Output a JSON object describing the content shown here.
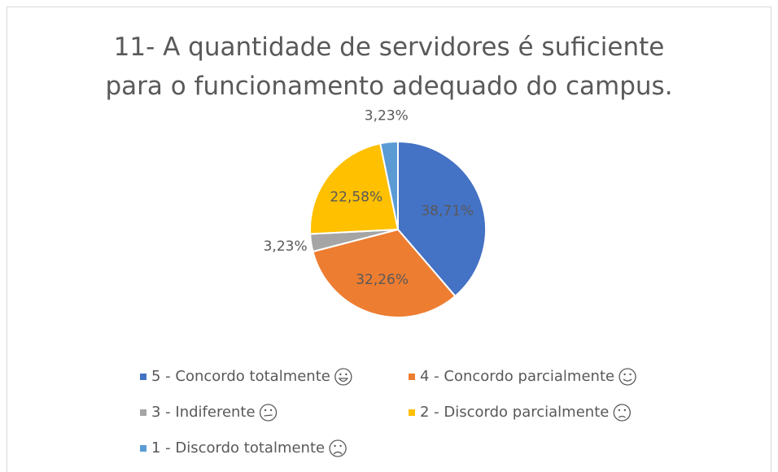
{
  "chart_data": {
    "type": "pie",
    "title": "11- A quantidade de servidores é suficiente para o funcionamento adequado do campus.",
    "categories": [
      "5 - Concordo totalmente",
      "4 - Concordo parcialmente",
      "3 - Indiferente",
      "2 - Discordo parcialmente",
      "1 - Discordo totalmente"
    ],
    "values": [
      38.71,
      32.26,
      3.23,
      22.58,
      3.23
    ],
    "value_labels": [
      "38,71%",
      "32,26%",
      "3,23%",
      "22,58%",
      "3,23%"
    ],
    "colors": [
      "#4472c4",
      "#ed7d31",
      "#a5a5a5",
      "#ffc000",
      "#5b9bd5"
    ],
    "legend": "bottom"
  }
}
